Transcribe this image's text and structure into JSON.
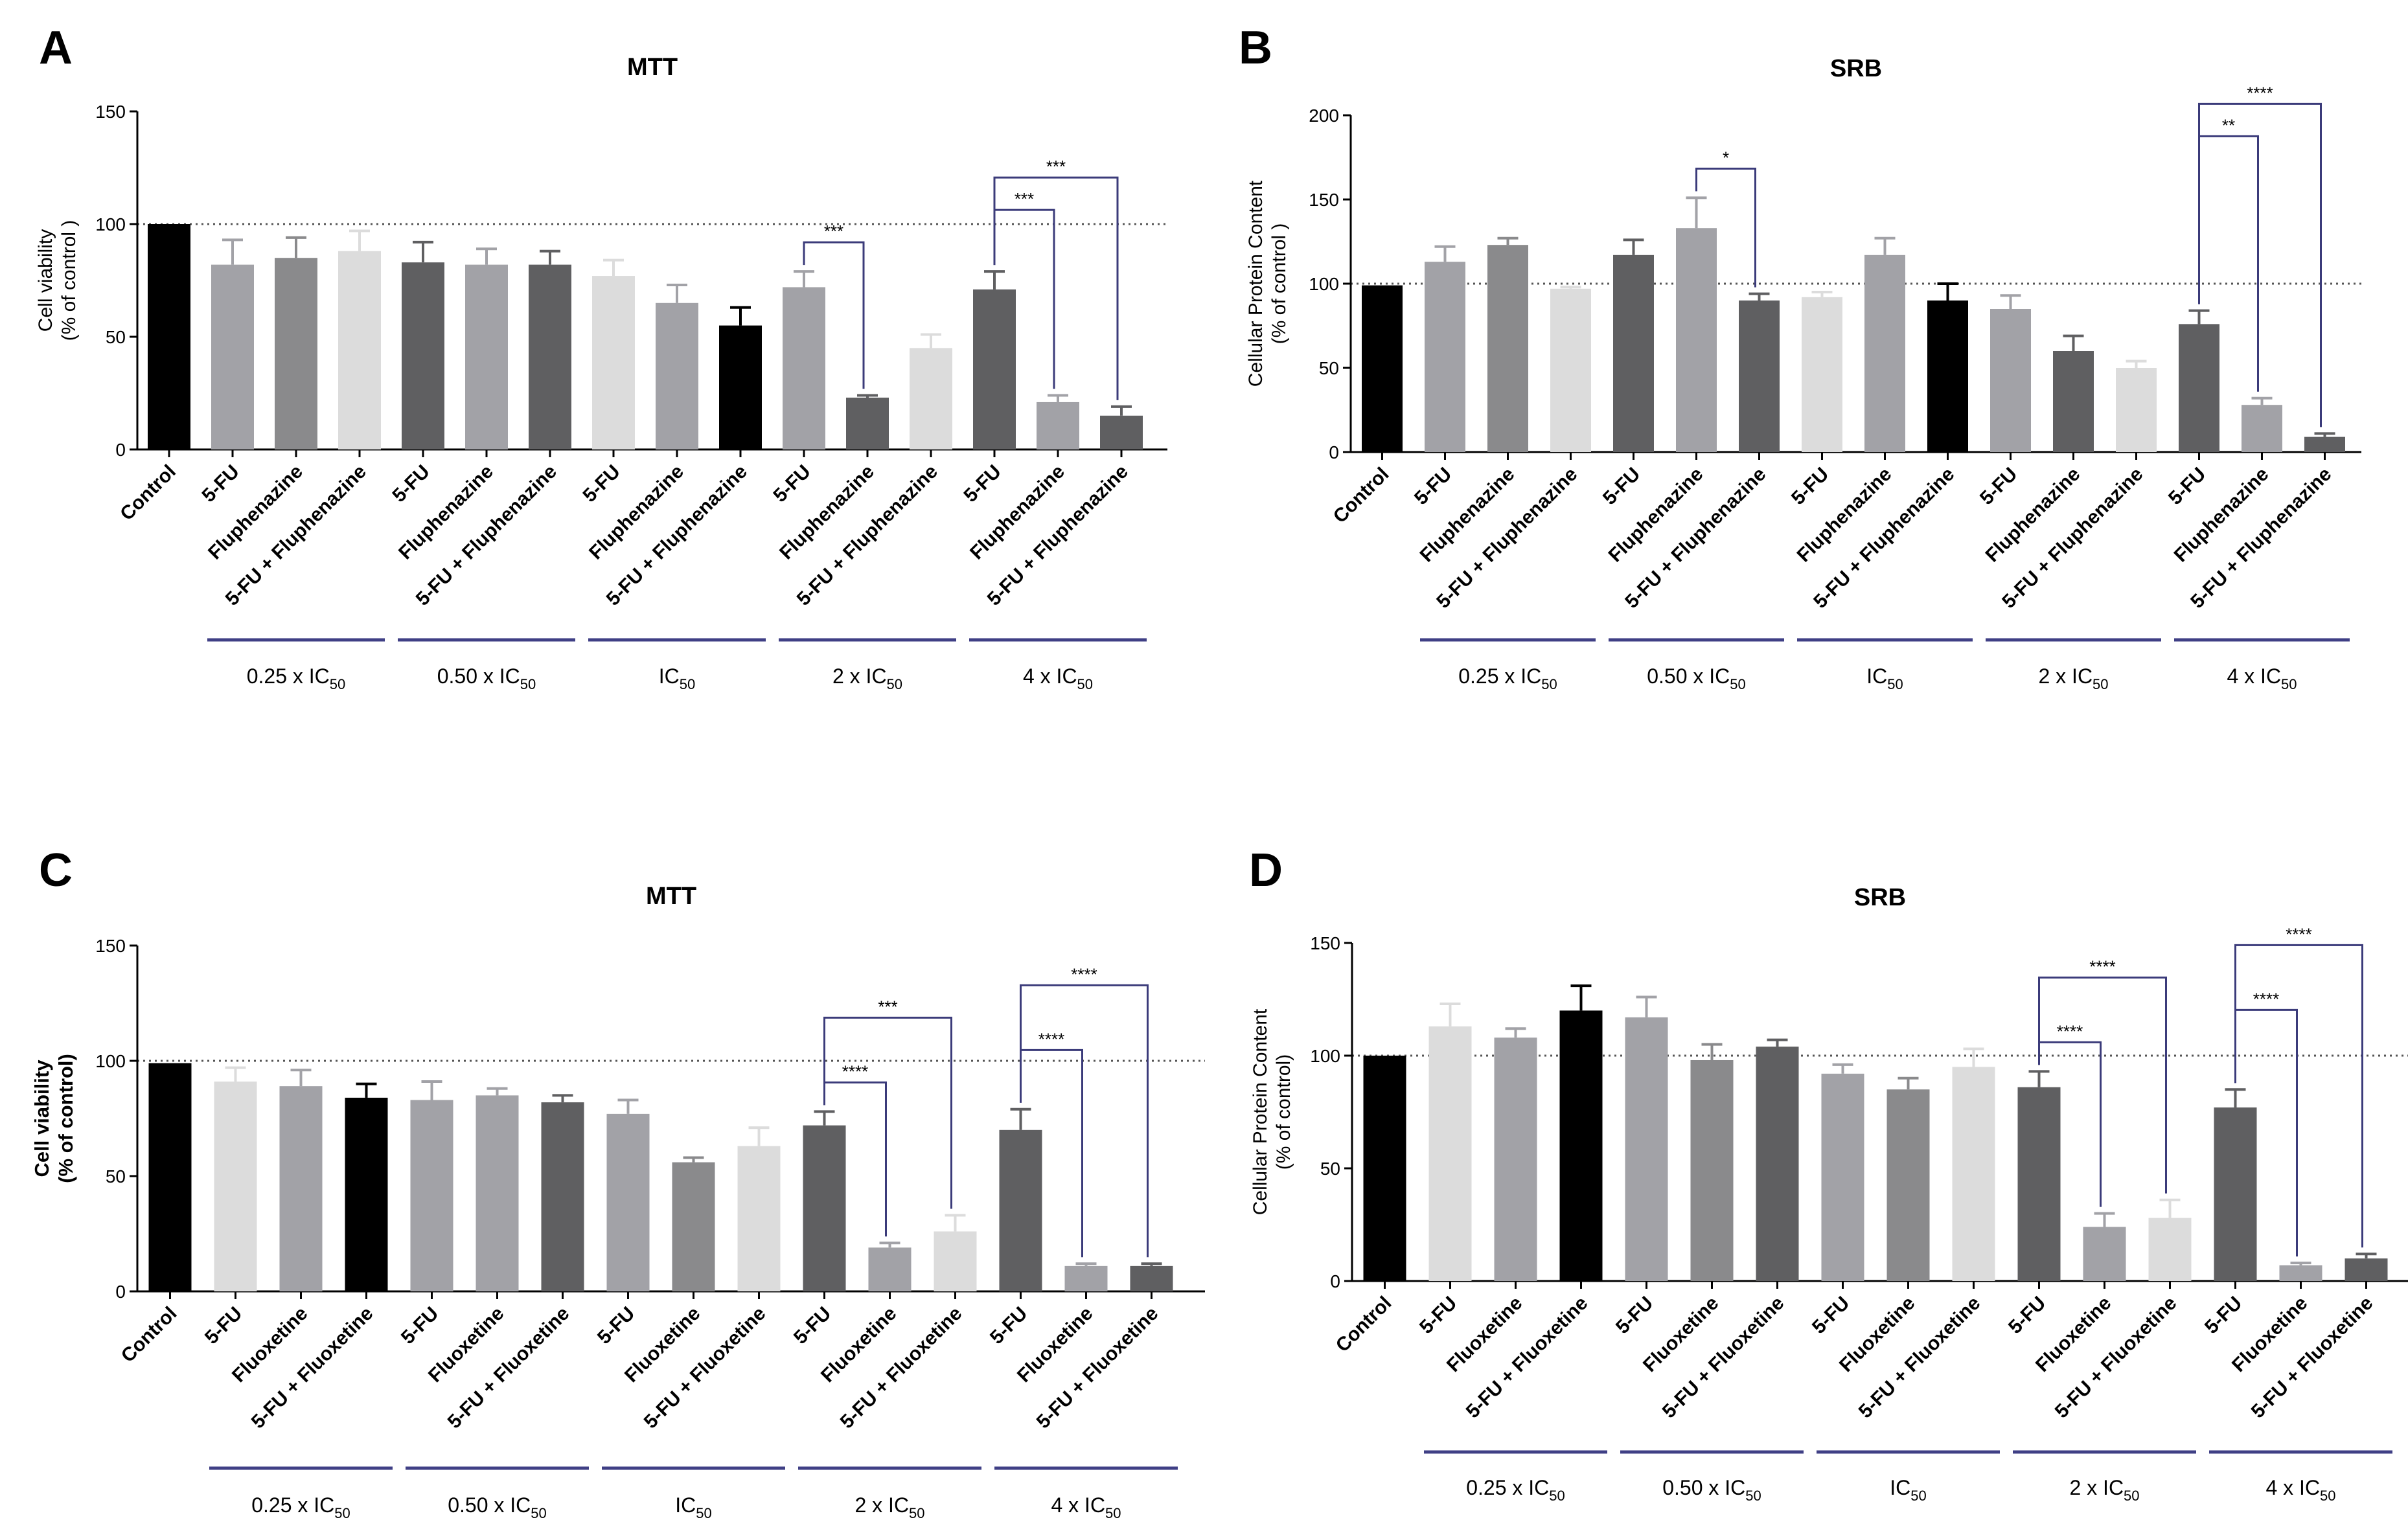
{
  "figure": {
    "panels": [
      {
        "letter": "A"
      },
      {
        "letter": "B"
      },
      {
        "letter": "C"
      },
      {
        "letter": "D"
      }
    ]
  },
  "colors": {
    "black": "#000000",
    "light": "#dcdcdc",
    "mid": "#a2a2a7",
    "mid2": "#8a8a8c",
    "dark": "#5f5f61",
    "bracket": "#3b3b7a",
    "group_line": "#3f3f85"
  },
  "chart_data": [
    {
      "type": "bar",
      "panel": "A",
      "title": "MTT",
      "ylabel": "Cell viability\n(% of control )",
      "ylim": [
        0,
        150
      ],
      "yticks": [
        0,
        50,
        100,
        150
      ],
      "reference_line": 100,
      "categories": [
        "Control",
        "5-FU",
        "Fluphenazine",
        "5-FU + Fluphenazine",
        "5-FU",
        "Fluphenazine",
        "5-FU + Fluphenazine",
        "5-FU",
        "Fluphenazine",
        "5-FU + Fluphenazine",
        "5-FU",
        "Fluphenazine",
        "5-FU + Fluphenazine",
        "5-FU",
        "Fluphenazine",
        "5-FU + Fluphenazine"
      ],
      "values": [
        100,
        82,
        85,
        88,
        83,
        82,
        82,
        77,
        65,
        55,
        72,
        23,
        45,
        71,
        21,
        15
      ],
      "errors": [
        0,
        11,
        9,
        9,
        9,
        7,
        6,
        7,
        8,
        8,
        7,
        1,
        6,
        8,
        3,
        4
      ],
      "bar_colors": [
        "black",
        "mid",
        "mid2",
        "light",
        "dark",
        "mid",
        "dark",
        "light",
        "mid",
        "black",
        "mid",
        "dark",
        "light",
        "dark",
        "mid",
        "dark"
      ],
      "groups": [
        {
          "label": "0.25 x IC",
          "sub": "50",
          "start": 1,
          "end": 3
        },
        {
          "label": "0.50 x IC",
          "sub": "50",
          "start": 4,
          "end": 6
        },
        {
          "label": "IC",
          "sub": "50",
          "start": 7,
          "end": 9
        },
        {
          "label": "2 x IC",
          "sub": "50",
          "start": 10,
          "end": 12
        },
        {
          "label": "4 x IC",
          "sub": "50",
          "start": 13,
          "end": 15
        }
      ],
      "significance": [
        {
          "from": 10,
          "to": 11,
          "label": "***"
        },
        {
          "from": 13,
          "to": 14,
          "label": "***"
        },
        {
          "from": 13,
          "to": 15,
          "label": "***"
        }
      ]
    },
    {
      "type": "bar",
      "panel": "B",
      "title": "SRB",
      "ylabel": "Cellular Protein Content\n(% of control )",
      "ylim": [
        0,
        200
      ],
      "yticks": [
        0,
        50,
        100,
        150,
        200
      ],
      "reference_line": 100,
      "categories": [
        "Control",
        "5-FU",
        "Fluphenazine",
        "5-FU + Fluphenazine",
        "5-FU",
        "Fluphenazine",
        "5-FU + Fluphenazine",
        "5-FU",
        "Fluphenazine",
        "5-FU + Fluphenazine",
        "5-FU",
        "Fluphenazine",
        "5-FU + Fluphenazine",
        "5-FU",
        "Fluphenazine",
        "5-FU + Fluphenazine"
      ],
      "values": [
        99,
        113,
        123,
        97,
        117,
        133,
        90,
        92,
        117,
        90,
        85,
        60,
        50,
        76,
        28,
        9
      ],
      "errors": [
        0,
        9,
        4,
        1,
        9,
        18,
        4,
        3,
        10,
        10,
        8,
        9,
        4,
        8,
        4,
        2
      ],
      "bar_colors": [
        "black",
        "mid",
        "mid2",
        "light",
        "dark",
        "mid",
        "dark",
        "light",
        "mid",
        "black",
        "mid",
        "dark",
        "light",
        "dark",
        "mid",
        "dark"
      ],
      "groups": [
        {
          "label": "0.25 x IC",
          "sub": "50",
          "start": 1,
          "end": 3
        },
        {
          "label": "0.50 x IC",
          "sub": "50",
          "start": 4,
          "end": 6
        },
        {
          "label": "IC",
          "sub": "50",
          "start": 7,
          "end": 9
        },
        {
          "label": "2 x IC",
          "sub": "50",
          "start": 10,
          "end": 12
        },
        {
          "label": "4 x IC",
          "sub": "50",
          "start": 13,
          "end": 15
        }
      ],
      "significance": [
        {
          "from": 5,
          "to": 6,
          "label": "*"
        },
        {
          "from": 13,
          "to": 14,
          "label": "**"
        },
        {
          "from": 13,
          "to": 15,
          "label": "****"
        }
      ]
    },
    {
      "type": "bar",
      "panel": "C",
      "title": "MTT",
      "ylabel": "Cell viability\n(% of control)",
      "ylabel_bold": true,
      "ylim": [
        0,
        150
      ],
      "yticks": [
        0,
        50,
        100,
        150
      ],
      "reference_line": 100,
      "categories": [
        "Control",
        "5-FU",
        "Fluoxetine",
        "5-FU + Fluoxetine",
        "5-FU",
        "Fluoxetine",
        "5-FU + Fluoxetine",
        "5-FU",
        "Fluoxetine",
        "5-FU + Fluoxetine",
        "5-FU",
        "Fluoxetine",
        "5-FU + Fluoxetine",
        "5-FU",
        "Fluoxetine",
        "5-FU + Fluoxetine"
      ],
      "values": [
        99,
        91,
        89,
        84,
        83,
        85,
        82,
        77,
        56,
        63,
        72,
        19,
        26,
        70,
        11,
        11
      ],
      "errors": [
        0,
        6,
        7,
        6,
        8,
        3,
        3,
        6,
        2,
        8,
        6,
        2,
        7,
        9,
        1,
        1
      ],
      "bar_colors": [
        "black",
        "light",
        "mid",
        "black",
        "mid",
        "mid",
        "dark",
        "mid",
        "mid2",
        "light",
        "dark",
        "mid",
        "light",
        "dark",
        "mid",
        "dark"
      ],
      "groups": [
        {
          "label": "0.25 x IC",
          "sub": "50",
          "start": 1,
          "end": 3
        },
        {
          "label": "0.50 x IC",
          "sub": "50",
          "start": 4,
          "end": 6
        },
        {
          "label": "IC",
          "sub": "50",
          "start": 7,
          "end": 9
        },
        {
          "label": "2 x IC",
          "sub": "50",
          "start": 10,
          "end": 12
        },
        {
          "label": "4 x IC",
          "sub": "50",
          "start": 13,
          "end": 15
        }
      ],
      "significance": [
        {
          "from": 10,
          "to": 11,
          "label": "****"
        },
        {
          "from": 10,
          "to": 12,
          "label": "***"
        },
        {
          "from": 13,
          "to": 14,
          "label": "****"
        },
        {
          "from": 13,
          "to": 15,
          "label": "****"
        }
      ]
    },
    {
      "type": "bar",
      "panel": "D",
      "title": "SRB",
      "ylabel": "Cellular Protein Content\n(% of control)",
      "ylim": [
        0,
        150
      ],
      "yticks": [
        0,
        50,
        100,
        150
      ],
      "reference_line": 100,
      "categories": [
        "Control",
        "5-FU",
        "Fluoxetine",
        "5-FU + Fluoxetine",
        "5-FU",
        "Fluoxetine",
        "5-FU + Fluoxetine",
        "5-FU",
        "Fluoxetine",
        "5-FU + Fluoxetine",
        "5-FU",
        "Fluoxetine",
        "5-FU + Fluoxetine",
        "5-FU",
        "Fluoxetine",
        "5-FU + Fluoxetine"
      ],
      "values": [
        100,
        113,
        108,
        120,
        117,
        98,
        104,
        92,
        85,
        95,
        86,
        24,
        28,
        77,
        7,
        10
      ],
      "errors": [
        0,
        10,
        4,
        11,
        9,
        7,
        3,
        4,
        5,
        8,
        7,
        6,
        8,
        8,
        1,
        2
      ],
      "bar_colors": [
        "black",
        "light",
        "mid",
        "black",
        "mid",
        "mid2",
        "dark",
        "mid",
        "mid2",
        "light",
        "dark",
        "mid",
        "light",
        "dark",
        "mid",
        "dark"
      ],
      "groups": [
        {
          "label": "0.25 x IC",
          "sub": "50",
          "start": 1,
          "end": 3
        },
        {
          "label": "0.50 x IC",
          "sub": "50",
          "start": 4,
          "end": 6
        },
        {
          "label": "IC",
          "sub": "50",
          "start": 7,
          "end": 9
        },
        {
          "label": "2 x IC",
          "sub": "50",
          "start": 10,
          "end": 12
        },
        {
          "label": "4 x IC",
          "sub": "50",
          "start": 13,
          "end": 15
        }
      ],
      "significance": [
        {
          "from": 10,
          "to": 11,
          "label": "****"
        },
        {
          "from": 10,
          "to": 12,
          "label": "****"
        },
        {
          "from": 13,
          "to": 14,
          "label": "****"
        },
        {
          "from": 13,
          "to": 15,
          "label": "****"
        }
      ]
    }
  ]
}
